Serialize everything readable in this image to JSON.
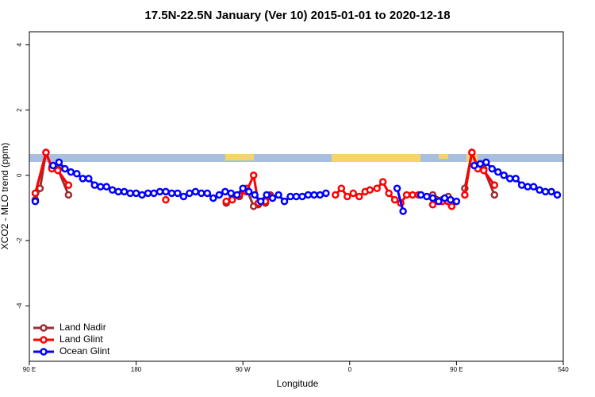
{
  "chart_data": {
    "type": "line",
    "title": "17.5N-22.5N January (Ver 10)   2015-01-01 to 2020-12-18",
    "x_label": "Longitude",
    "y_label": "XCO2 - MLO trend (ppm)",
    "xlim": [
      90,
      540
    ],
    "ylim": [
      -5.7,
      4.4
    ],
    "xticks": [
      {
        "value": 90,
        "label": "90 E"
      },
      180,
      {
        "value": 270,
        "label": "90 W"
      },
      {
        "value": 360,
        "label": "0"
      },
      {
        "value": 450,
        "label": "90 E"
      },
      540
    ],
    "yticks": [
      -4,
      -2,
      0,
      2,
      4
    ],
    "legend": "bottomleft",
    "series": [
      {
        "name": "Land Nadir",
        "color": "#9b2d30",
        "x": [
          95,
          99,
          104,
          109,
          114,
          123,
          null,
          256,
          261,
          267,
          273,
          279,
          283,
          289,
          293,
          null,
          430,
          438,
          443,
          null,
          457,
          463,
          468,
          473,
          482
        ],
        "values": [
          -0.75,
          -0.4,
          0.7,
          0.25,
          0.2,
          -0.6,
          null,
          -0.85,
          -0.7,
          -0.65,
          -0.4,
          -0.95,
          -0.9,
          -0.85,
          -0.6,
          null,
          -0.6,
          -0.75,
          -0.65,
          null,
          -0.4,
          0.7,
          0.25,
          0.2,
          -0.6
        ]
      },
      {
        "name": "Land Glint",
        "color": "#ff0000",
        "x": [
          95,
          104,
          109,
          114,
          123,
          null,
          205,
          null,
          256,
          261,
          267,
          273,
          279,
          283,
          289,
          293,
          null,
          348,
          353,
          358,
          363,
          368,
          373,
          377,
          383,
          388,
          393,
          398,
          403,
          408,
          413,
          418,
          null,
          430,
          438,
          446,
          null,
          457,
          463,
          468,
          473,
          482
        ],
        "values": [
          -0.55,
          0.7,
          0.2,
          0.15,
          -0.3,
          null,
          -0.75,
          null,
          -0.8,
          -0.75,
          -0.6,
          -0.5,
          0,
          -0.85,
          -0.8,
          -0.65,
          null,
          -0.6,
          -0.4,
          -0.65,
          -0.55,
          -0.65,
          -0.5,
          -0.45,
          -0.4,
          -0.2,
          -0.55,
          -0.75,
          -0.85,
          -0.6,
          -0.6,
          -0.6,
          null,
          -0.9,
          -0.8,
          -0.95,
          null,
          -0.6,
          0.7,
          0.2,
          0.15,
          -0.3
        ]
      },
      {
        "name": "Ocean Glint",
        "color": "#0000ff",
        "x": [
          95,
          null,
          110,
          115,
          120,
          125,
          130,
          135,
          140,
          145,
          150,
          155,
          160,
          165,
          170,
          175,
          180,
          185,
          190,
          195,
          200,
          205,
          210,
          215,
          220,
          225,
          230,
          235,
          240,
          245,
          250,
          255,
          260,
          265,
          270,
          275,
          280,
          285,
          290,
          295,
          300,
          305,
          310,
          315,
          320,
          325,
          330,
          335,
          340,
          null,
          400,
          405,
          null,
          420,
          425,
          430,
          435,
          440,
          445,
          450,
          null,
          465,
          470,
          475,
          480,
          485,
          490,
          495,
          500,
          505,
          510,
          515,
          520,
          525,
          530,
          535
        ],
        "values": [
          -0.8,
          null,
          0.3,
          0.4,
          0.2,
          0.1,
          0.05,
          -0.1,
          -0.1,
          -0.3,
          -0.35,
          -0.35,
          -0.45,
          -0.5,
          -0.5,
          -0.55,
          -0.55,
          -0.6,
          -0.55,
          -0.55,
          -0.5,
          -0.5,
          -0.55,
          -0.55,
          -0.65,
          -0.55,
          -0.5,
          -0.55,
          -0.55,
          -0.7,
          -0.6,
          -0.5,
          -0.55,
          -0.6,
          -0.4,
          -0.5,
          -0.6,
          -0.8,
          -0.6,
          -0.7,
          -0.6,
          -0.8,
          -0.65,
          -0.65,
          -0.65,
          -0.6,
          -0.6,
          -0.6,
          -0.55,
          null,
          -0.4,
          -1.1,
          null,
          -0.6,
          -0.65,
          -0.7,
          -0.8,
          -0.7,
          -0.75,
          -0.8,
          null,
          0.3,
          0.35,
          0.4,
          0.2,
          0.1,
          0,
          -0.1,
          -0.1,
          -0.3,
          -0.35,
          -0.35,
          -0.45,
          -0.5,
          -0.5,
          -0.6
        ]
      }
    ]
  }
}
